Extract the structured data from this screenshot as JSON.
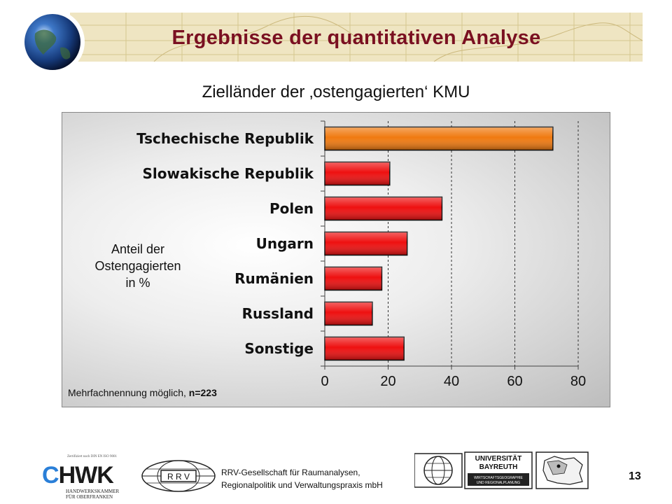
{
  "header": {
    "title": "Ergebnisse der quantitativen Analyse"
  },
  "chart_data": {
    "type": "bar",
    "orientation": "horizontal",
    "title": "Zielländer der ‚ostengagierten‘ KMU",
    "ylabel_lines": [
      "Anteil der",
      "Ostengagierten",
      "in %"
    ],
    "categories": [
      "Tschechische Republik",
      "Slowakische Republik",
      "Polen",
      "Ungarn",
      "Rumänien",
      "Russland",
      "Sonstige"
    ],
    "values": [
      72,
      20.5,
      37,
      26,
      18,
      15,
      25
    ],
    "bar_colors": [
      "#f07a10",
      "#ee1010",
      "#ee1010",
      "#ee1010",
      "#ee1010",
      "#ee1010",
      "#ee1010"
    ],
    "xlim": [
      0,
      80
    ],
    "xticks": [
      "0",
      "20",
      "40",
      "60",
      "80"
    ],
    "grid": "vertical dashed",
    "note_prefix": "Mehrfachnennung möglich, ",
    "note_n": "n=223"
  },
  "footer": {
    "hwk_cert": "Zertifiziert nach DIN EN ISO 9001",
    "hwk_name": "HWK",
    "hwk_sub_1": "HANDWERKSKAMMER",
    "hwk_sub_2": "FÜR OBERFRANKEN",
    "rrv_mark": "R R V",
    "company_line1": "RRV-Gesellschaft für Raumanalysen,",
    "company_line2": "Regionalpolitik und Verwaltungspraxis mbH",
    "uni_line1": "UNIVERSITÄT",
    "uni_line2": "BAYREUTH",
    "uni_line3": "WIRTSCHAFTSGEOGRAPHIE",
    "uni_line4": "UND REGIONALPLANUNG",
    "page_number": "13"
  }
}
